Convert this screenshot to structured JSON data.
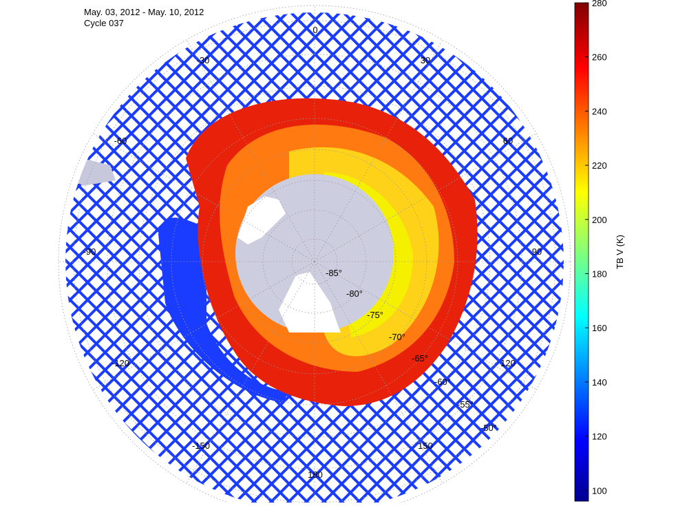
{
  "header": {
    "title": "May. 03, 2012 - May. 10, 2012",
    "subtitle": "Cycle 037"
  },
  "map": {
    "longitude_labels": [
      "0",
      "-30",
      "30",
      "-60",
      "60",
      "-90",
      "90",
      "-120",
      "120",
      "-150",
      "150",
      "180"
    ],
    "latitude_labels": [
      "-85°",
      "-80°",
      "-75°",
      "-70°",
      "-65°",
      "-60°",
      "-55°",
      "-50°"
    ]
  },
  "colorbar": {
    "label": "TB V (K)",
    "lim": [
      96,
      280
    ],
    "ticks": [
      100,
      120,
      140,
      160,
      180,
      200,
      220,
      240,
      260,
      280
    ]
  }
}
